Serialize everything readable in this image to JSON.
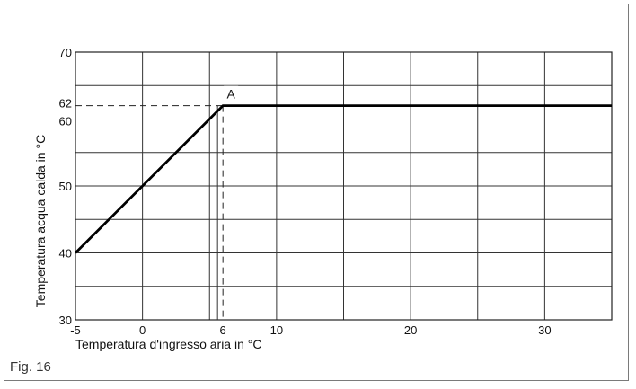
{
  "figure": {
    "caption": "Fig. 16"
  },
  "chart_data": {
    "type": "line",
    "title": "",
    "xlabel": "Temperatura d'ingresso aria in °C",
    "ylabel": "Temperatura acqua calda in °C",
    "xlim": [
      -5,
      35
    ],
    "ylim": [
      30,
      70
    ],
    "x_ticks": [
      -5,
      0,
      6,
      10,
      20,
      30
    ],
    "y_ticks": [
      30,
      40,
      50,
      60,
      62,
      70
    ],
    "x_grid": [
      -5,
      0,
      5,
      10,
      15,
      20,
      25,
      30,
      35
    ],
    "y_grid": [
      30,
      35,
      40,
      45,
      50,
      55,
      60,
      65,
      70
    ],
    "grid": true,
    "series": [
      {
        "x": [
          -5,
          6,
          35
        ],
        "y": [
          40,
          62,
          62
        ]
      }
    ],
    "annotations": [
      {
        "text": "A",
        "x": 6,
        "y": 62
      }
    ],
    "reference_lines": [
      {
        "style": "dashed",
        "from": [
          -5,
          62
        ],
        "to": [
          6,
          62
        ]
      },
      {
        "style": "dashed",
        "from": [
          6,
          62
        ],
        "to": [
          6,
          30
        ]
      }
    ]
  }
}
